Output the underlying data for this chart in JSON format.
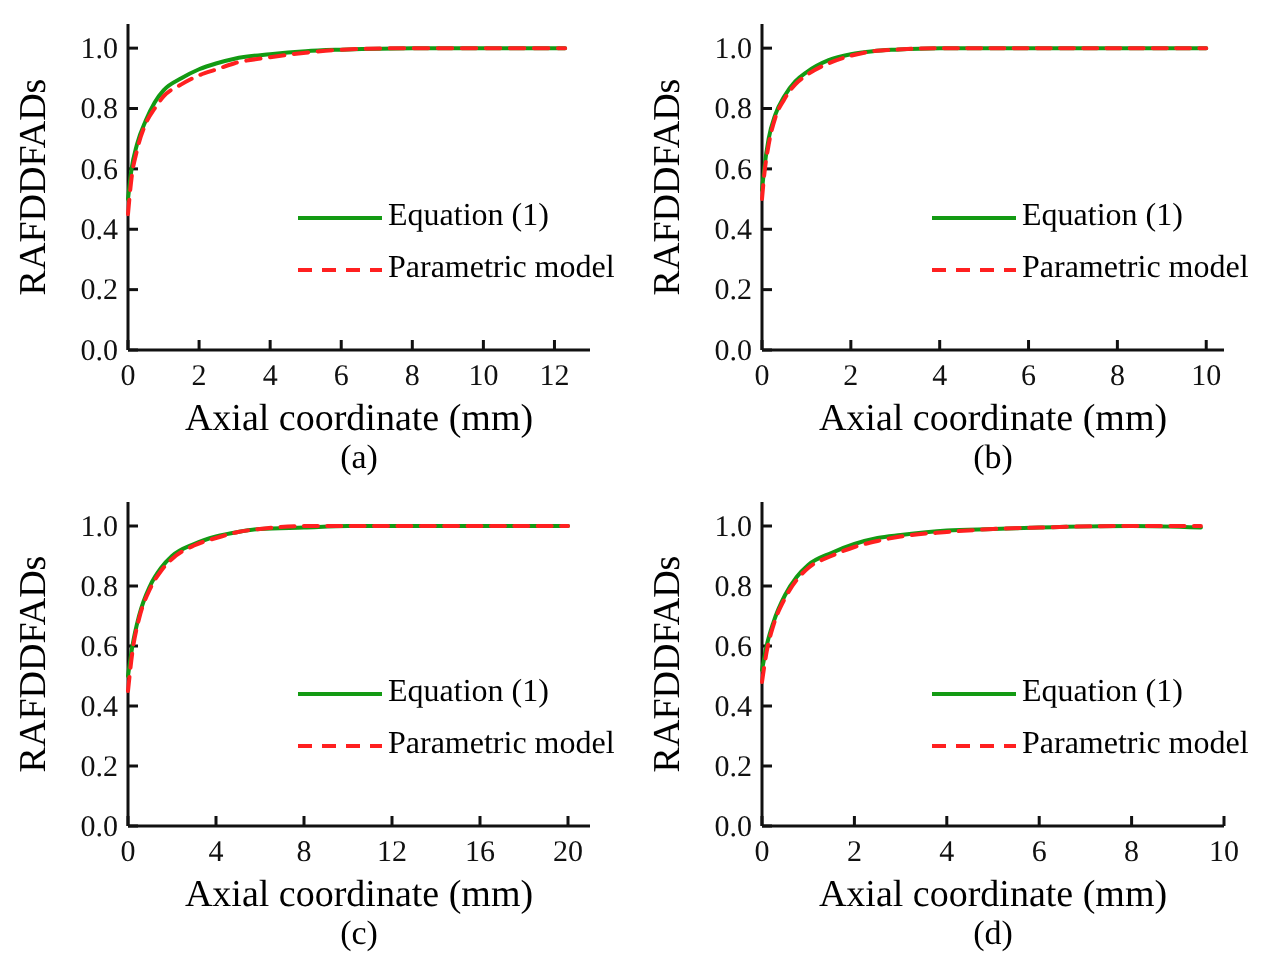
{
  "chart_data": [
    {
      "type": "line",
      "xlabel": "Axial coordinate (mm)",
      "ylabel": "RAFDDFADs",
      "annotations": [
        "(a)"
      ],
      "legend": "bottom right",
      "xlim": [
        0,
        13
      ],
      "xticks": [
        0,
        2,
        4,
        6,
        8,
        10,
        12
      ],
      "ylim": [
        0,
        1.08
      ],
      "yticks": [
        {
          "value": 0,
          "label": "0.0"
        },
        {
          "value": 0.2,
          "label": "0.2"
        },
        {
          "value": 0.4,
          "label": "0.4"
        },
        {
          "value": 0.6,
          "label": "0.6"
        },
        {
          "value": 0.8,
          "label": "0.8"
        },
        {
          "value": 1,
          "label": "1.0"
        }
      ],
      "x": [
        0,
        0.1,
        0.25,
        0.5,
        0.75,
        1,
        1.5,
        2,
        2.5,
        3,
        4,
        5,
        6,
        8,
        10,
        12.3
      ],
      "series": [
        {
          "name": "Equation (1)",
          "color": "#139a13",
          "line_style": "solid",
          "values": [
            0.5,
            0.6,
            0.68,
            0.76,
            0.82,
            0.86,
            0.9,
            0.93,
            0.95,
            0.965,
            0.98,
            0.99,
            0.995,
            1,
            1,
            1
          ]
        },
        {
          "name": "Parametric model",
          "color": "#ff2020",
          "line_style": "dashed",
          "values": [
            0.45,
            0.57,
            0.66,
            0.75,
            0.8,
            0.84,
            0.88,
            0.91,
            0.93,
            0.95,
            0.97,
            0.985,
            0.995,
            1,
            1,
            1
          ]
        }
      ]
    },
    {
      "type": "line",
      "xlabel": "Axial coordinate (mm)",
      "ylabel": "RAFDDFADs",
      "annotations": [
        "(b)"
      ],
      "legend": "bottom right",
      "xlim": [
        0,
        10.4
      ],
      "xticks": [
        0,
        2,
        4,
        6,
        8,
        10
      ],
      "ylim": [
        0,
        1.08
      ],
      "yticks": [
        {
          "value": 0,
          "label": "0.0"
        },
        {
          "value": 0.2,
          "label": "0.2"
        },
        {
          "value": 0.4,
          "label": "0.4"
        },
        {
          "value": 0.6,
          "label": "0.6"
        },
        {
          "value": 0.8,
          "label": "0.8"
        },
        {
          "value": 1,
          "label": "1.0"
        }
      ],
      "x": [
        0,
        0.05,
        0.15,
        0.3,
        0.5,
        0.75,
        1,
        1.5,
        2,
        2.5,
        3,
        4,
        6,
        8,
        10
      ],
      "series": [
        {
          "name": "Equation (1)",
          "color": "#139a13",
          "line_style": "solid",
          "values": [
            0.53,
            0.6,
            0.7,
            0.78,
            0.84,
            0.89,
            0.92,
            0.96,
            0.98,
            0.99,
            0.995,
            1,
            1,
            1,
            1
          ]
        },
        {
          "name": "Parametric model",
          "color": "#ff2020",
          "line_style": "dashed",
          "values": [
            0.5,
            0.58,
            0.68,
            0.77,
            0.83,
            0.88,
            0.91,
            0.95,
            0.975,
            0.99,
            0.995,
            1,
            1,
            1,
            1
          ]
        }
      ]
    },
    {
      "type": "line",
      "xlabel": "Axial coordinate (mm)",
      "ylabel": "RAFDDFADs",
      "annotations": [
        "(c)"
      ],
      "legend": "bottom right",
      "xlim": [
        0,
        21
      ],
      "xticks": [
        0,
        4,
        8,
        12,
        16,
        20
      ],
      "ylim": [
        0,
        1.08
      ],
      "yticks": [
        {
          "value": 0,
          "label": "0.0"
        },
        {
          "value": 0.2,
          "label": "0.2"
        },
        {
          "value": 0.4,
          "label": "0.4"
        },
        {
          "value": 0.6,
          "label": "0.6"
        },
        {
          "value": 0.8,
          "label": "0.8"
        },
        {
          "value": 1,
          "label": "1.0"
        }
      ],
      "x": [
        0,
        0.2,
        0.5,
        1,
        1.5,
        2,
        3,
        4,
        5,
        6,
        8,
        10,
        14,
        20
      ],
      "series": [
        {
          "name": "Equation (1)",
          "color": "#139a13",
          "line_style": "solid",
          "values": [
            0.5,
            0.6,
            0.7,
            0.8,
            0.86,
            0.9,
            0.94,
            0.965,
            0.98,
            0.99,
            0.995,
            1,
            1,
            1
          ]
        },
        {
          "name": "Parametric model",
          "color": "#ff2020",
          "line_style": "dashed",
          "values": [
            0.45,
            0.58,
            0.69,
            0.79,
            0.85,
            0.89,
            0.935,
            0.96,
            0.98,
            0.99,
            1,
            1,
            1,
            1
          ]
        }
      ]
    },
    {
      "type": "line",
      "xlabel": "Axial coordinate (mm)",
      "ylabel": "RAFDDFADs",
      "annotations": [
        "(d)"
      ],
      "legend": "bottom right",
      "xlim": [
        0,
        10
      ],
      "xticks": [
        0,
        2,
        4,
        6,
        8,
        10
      ],
      "ylim": [
        0,
        1.08
      ],
      "yticks": [
        {
          "value": 0,
          "label": "0.0"
        },
        {
          "value": 0.2,
          "label": "0.2"
        },
        {
          "value": 0.4,
          "label": "0.4"
        },
        {
          "value": 0.6,
          "label": "0.6"
        },
        {
          "value": 0.8,
          "label": "0.8"
        },
        {
          "value": 1,
          "label": "1.0"
        }
      ],
      "x": [
        0,
        0.1,
        0.25,
        0.5,
        0.75,
        1,
        1.5,
        2,
        2.5,
        3,
        4,
        5,
        6,
        8,
        9.5
      ],
      "series": [
        {
          "name": "Equation (1)",
          "color": "#139a13",
          "line_style": "solid",
          "values": [
            0.52,
            0.6,
            0.68,
            0.77,
            0.83,
            0.87,
            0.91,
            0.94,
            0.96,
            0.97,
            0.985,
            0.99,
            0.995,
            1,
            0.995
          ]
        },
        {
          "name": "Parametric model",
          "color": "#ff2020",
          "line_style": "dashed",
          "values": [
            0.48,
            0.58,
            0.67,
            0.76,
            0.82,
            0.86,
            0.9,
            0.93,
            0.95,
            0.965,
            0.98,
            0.99,
            0.995,
            1,
            1
          ]
        }
      ]
    }
  ]
}
